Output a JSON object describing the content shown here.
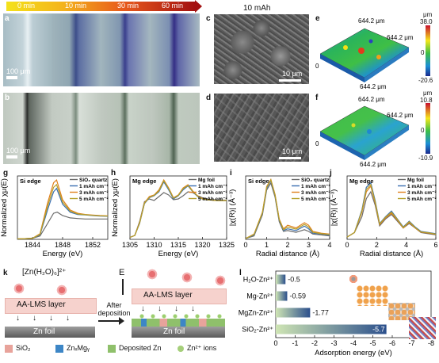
{
  "panels": {
    "a": "a",
    "b": "b",
    "c": "c",
    "d": "d",
    "e": "e",
    "f": "f",
    "g": "g",
    "h": "h",
    "i": "i",
    "j": "j",
    "k": "k",
    "l": "l"
  },
  "time_bar": {
    "labels": [
      "0 min",
      "10 min",
      "30 min",
      "60 min"
    ],
    "colors": [
      "#f6d800",
      "#f19a1b",
      "#e0401f",
      "#a91414"
    ]
  },
  "scale_labels": {
    "a": "100 μm",
    "b": "100 μm",
    "c": "10 μm",
    "d": "10 μm"
  },
  "sem_title": "10 mAh",
  "afm": {
    "e": {
      "top": "644.2 μm",
      "right": "644.2 μm",
      "bottom": "644.2 μm",
      "zero": "0",
      "unit": "μm",
      "max": "38.0",
      "mid": "0",
      "min": "-20.6"
    },
    "f": {
      "top": "644.2 μm",
      "right": "644.2 μm",
      "bottom": "644.2 μm",
      "zero": "0",
      "unit": "μm",
      "max": "10.8",
      "mid": "0",
      "min": "-10.9"
    }
  },
  "chart_data": [
    {
      "id": "g",
      "type": "line",
      "title": "Si edge",
      "xlabel": "Energy (eV)",
      "ylabel": "Normalized χμ(E)",
      "xlim": [
        1842,
        1854
      ],
      "xticks": [
        1844,
        1848,
        1852
      ],
      "series": [
        {
          "name": "SiO₂ quartz",
          "color": "#6b6b6b",
          "x": [
            1842,
            1843,
            1844,
            1845,
            1846,
            1846.8,
            1847.3,
            1848,
            1849,
            1850,
            1851,
            1852,
            1853,
            1854
          ],
          "y": [
            0.02,
            0.03,
            0.05,
            0.15,
            0.7,
            1.15,
            1.2,
            1.05,
            0.95,
            0.92,
            0.9,
            0.9,
            0.9,
            0.9
          ]
        },
        {
          "name": "1 mAh cm⁻²",
          "color": "#3a6fb0",
          "x": [
            1842,
            1843,
            1844,
            1845,
            1846,
            1846.8,
            1847.2,
            1848,
            1849,
            1850,
            1851,
            1852,
            1853,
            1854
          ],
          "y": [
            0.02,
            0.03,
            0.05,
            0.2,
            1.3,
            2.1,
            2.25,
            1.55,
            1.2,
            1.1,
            1.08,
            1.05,
            1.03,
            1.02
          ]
        },
        {
          "name": "3 mAh cm⁻²",
          "color": "#e0801c",
          "x": [
            1842,
            1843,
            1844,
            1845,
            1846,
            1846.8,
            1847.2,
            1848,
            1849,
            1850,
            1851,
            1852,
            1853,
            1854
          ],
          "y": [
            0.02,
            0.03,
            0.05,
            0.25,
            1.6,
            2.5,
            2.62,
            1.75,
            1.3,
            1.15,
            1.1,
            1.07,
            1.05,
            1.04
          ]
        },
        {
          "name": "5 mAh cm⁻²",
          "color": "#b5a02b",
          "x": [
            1842,
            1843,
            1844,
            1845,
            1846,
            1846.8,
            1847.2,
            1848,
            1849,
            1850,
            1851,
            1852,
            1853,
            1854
          ],
          "y": [
            0.02,
            0.03,
            0.05,
            0.22,
            1.45,
            2.3,
            2.42,
            1.65,
            1.25,
            1.12,
            1.09,
            1.06,
            1.04,
            1.03
          ]
        }
      ]
    },
    {
      "id": "h",
      "type": "line",
      "title": "Mg edge",
      "xlabel": "Energy (eV)",
      "ylabel": "Normalized χμ(E)",
      "xlim": [
        1305,
        1325
      ],
      "xticks": [
        1305,
        1310,
        1315,
        1320,
        1325
      ],
      "series": [
        {
          "name": "Mg foil",
          "color": "#6b6b6b",
          "x": [
            1305,
            1306,
            1307,
            1308,
            1309,
            1310,
            1311,
            1312,
            1313,
            1314,
            1315,
            1316,
            1317,
            1318,
            1319,
            1320,
            1321,
            1322,
            1323,
            1324,
            1325
          ],
          "y": [
            0.05,
            0.1,
            0.45,
            0.95,
            1.02,
            0.98,
            1.08,
            1.18,
            1.12,
            1.0,
            1.02,
            1.1,
            1.2,
            1.18,
            1.1,
            1.05,
            1.02,
            1.0,
            1.0,
            0.99,
            0.99
          ]
        },
        {
          "name": "1 mAh cm⁻²",
          "color": "#3a6fb0",
          "x": [
            1305,
            1306,
            1307,
            1308,
            1309,
            1310,
            1311,
            1312,
            1313,
            1314,
            1315,
            1316,
            1317,
            1318,
            1319,
            1320,
            1321,
            1322,
            1323,
            1324,
            1325
          ],
          "y": [
            0.05,
            0.1,
            0.4,
            0.9,
            1.05,
            1.1,
            1.2,
            1.45,
            1.25,
            1.02,
            1.1,
            1.25,
            1.35,
            1.2,
            1.08,
            1.02,
            1.0,
            0.99,
            0.98,
            0.98,
            0.98
          ]
        },
        {
          "name": "3 mAh cm⁻²",
          "color": "#e0801c",
          "x": [
            1305,
            1306,
            1307,
            1308,
            1309,
            1310,
            1311,
            1312,
            1313,
            1314,
            1315,
            1316,
            1317,
            1318,
            1319,
            1320,
            1321,
            1322,
            1323,
            1324,
            1325
          ],
          "y": [
            0.05,
            0.1,
            0.42,
            0.92,
            1.08,
            1.12,
            1.25,
            1.5,
            1.3,
            1.05,
            1.12,
            1.3,
            1.38,
            1.22,
            1.1,
            1.03,
            1.0,
            0.99,
            0.98,
            0.98,
            0.98
          ]
        },
        {
          "name": "5 mAh cm⁻²",
          "color": "#b5a02b",
          "x": [
            1305,
            1306,
            1307,
            1308,
            1309,
            1310,
            1311,
            1312,
            1313,
            1314,
            1315,
            1316,
            1317,
            1318,
            1319,
            1320,
            1321,
            1322,
            1323,
            1324,
            1325
          ],
          "y": [
            0.05,
            0.1,
            0.41,
            0.91,
            1.06,
            1.11,
            1.22,
            1.48,
            1.28,
            1.04,
            1.11,
            1.28,
            1.36,
            1.21,
            1.09,
            1.02,
            1.0,
            0.99,
            0.98,
            0.98,
            0.98
          ]
        }
      ]
    },
    {
      "id": "i",
      "type": "line",
      "title": "Si edge",
      "xlabel": "Radial distance (Å)",
      "ylabel": "|χ(R)| (Å⁻³)",
      "xlim": [
        0,
        4
      ],
      "xticks": [
        0,
        1,
        2,
        3,
        4
      ],
      "series": [
        {
          "name": "SiO₂ quartz",
          "color": "#6b6b6b",
          "x": [
            0,
            0.4,
            0.8,
            1.0,
            1.2,
            1.4,
            1.6,
            1.8,
            2.0,
            2.4,
            2.8,
            3.0,
            3.2,
            3.6,
            4.0
          ],
          "y": [
            0.05,
            0.2,
            1.4,
            2.8,
            3.2,
            2.4,
            1.0,
            0.45,
            0.5,
            0.4,
            0.55,
            0.45,
            0.3,
            0.25,
            0.2
          ]
        },
        {
          "name": "1 mAh cm⁻²",
          "color": "#3a6fb0",
          "x": [
            0,
            0.4,
            0.8,
            1.0,
            1.2,
            1.4,
            1.6,
            1.8,
            2.0,
            2.4,
            2.8,
            3.0,
            3.2,
            3.6,
            4.0
          ],
          "y": [
            0.05,
            0.25,
            1.5,
            2.9,
            3.35,
            2.5,
            1.1,
            0.5,
            0.6,
            0.5,
            0.75,
            0.6,
            0.35,
            0.3,
            0.25
          ]
        },
        {
          "name": "3 mAh cm⁻²",
          "color": "#e0801c",
          "x": [
            0,
            0.4,
            0.8,
            1.0,
            1.2,
            1.4,
            1.6,
            1.8,
            2.0,
            2.4,
            2.8,
            3.0,
            3.2,
            3.6,
            4.0
          ],
          "y": [
            0.05,
            0.3,
            1.55,
            3.0,
            3.4,
            2.55,
            1.15,
            0.6,
            0.8,
            0.65,
            0.95,
            0.8,
            0.45,
            0.35,
            0.3
          ]
        },
        {
          "name": "5 mAh cm⁻²",
          "color": "#b5a02b",
          "x": [
            0,
            0.4,
            0.8,
            1.0,
            1.2,
            1.4,
            1.6,
            1.8,
            2.0,
            2.4,
            2.8,
            3.0,
            3.2,
            3.6,
            4.0
          ],
          "y": [
            0.05,
            0.28,
            1.52,
            2.95,
            3.38,
            2.52,
            1.12,
            0.55,
            0.7,
            0.58,
            0.85,
            0.7,
            0.4,
            0.32,
            0.28
          ]
        }
      ]
    },
    {
      "id": "j",
      "type": "line",
      "title": "Mg edge",
      "xlabel": "Radial distance (Å)",
      "ylabel": "|χ(R)| (Å⁻³)",
      "xlim": [
        0,
        6
      ],
      "xticks": [
        0,
        2,
        4,
        6
      ],
      "series": [
        {
          "name": "Mg foil",
          "color": "#6b6b6b",
          "x": [
            0,
            0.5,
            1.0,
            1.3,
            1.6,
            1.9,
            2.2,
            2.6,
            3.0,
            3.4,
            3.8,
            4.2,
            4.6,
            5.0,
            5.5,
            6.0
          ],
          "y": [
            0.1,
            0.3,
            1.0,
            1.8,
            2.1,
            1.5,
            0.6,
            0.9,
            1.1,
            0.8,
            0.5,
            0.7,
            0.5,
            0.3,
            0.25,
            0.2
          ]
        },
        {
          "name": "1 mAh cm⁻²",
          "color": "#3a6fb0",
          "x": [
            0,
            0.5,
            1.0,
            1.3,
            1.6,
            1.9,
            2.2,
            2.6,
            3.0,
            3.4,
            3.8,
            4.2,
            4.6,
            5.0,
            5.5,
            6.0
          ],
          "y": [
            0.1,
            0.3,
            1.3,
            2.3,
            2.5,
            1.7,
            0.7,
            1.0,
            1.25,
            0.9,
            0.55,
            0.8,
            0.55,
            0.35,
            0.3,
            0.25
          ]
        },
        {
          "name": "3 mAh cm⁻²",
          "color": "#e0801c",
          "x": [
            0,
            0.5,
            1.0,
            1.3,
            1.6,
            1.9,
            2.2,
            2.6,
            3.0,
            3.4,
            3.8,
            4.2,
            4.6,
            5.0,
            5.5,
            6.0
          ],
          "y": [
            0.1,
            0.3,
            1.2,
            2.1,
            2.35,
            1.6,
            0.65,
            0.95,
            1.15,
            0.85,
            0.5,
            0.75,
            0.5,
            0.32,
            0.28,
            0.22
          ]
        },
        {
          "name": "5 mAh cm⁻²",
          "color": "#b5a02b",
          "x": [
            0,
            0.5,
            1.0,
            1.3,
            1.6,
            1.9,
            2.2,
            2.6,
            3.0,
            3.4,
            3.8,
            4.2,
            4.6,
            5.0,
            5.5,
            6.0
          ],
          "y": [
            0.1,
            0.3,
            1.25,
            2.2,
            2.42,
            1.65,
            0.68,
            0.98,
            1.2,
            0.88,
            0.52,
            0.78,
            0.52,
            0.33,
            0.29,
            0.23
          ]
        }
      ]
    },
    {
      "id": "l",
      "type": "bar",
      "orientation": "horizontal",
      "xlabel": "Adsorption energy (eV)",
      "xlim": [
        0,
        -8
      ],
      "xticks": [
        0,
        -1,
        -2,
        -3,
        -4,
        -5,
        -6,
        -7,
        -8
      ],
      "categories": [
        "H₂O-Zn²⁺",
        "Mg-Zn²⁺",
        "MgZn-Zn²⁺",
        "SiO₂-Zn²⁺"
      ],
      "values": [
        -0.5,
        -0.59,
        -1.77,
        -5.7
      ],
      "value_labels": [
        "-0.5",
        "-0.59",
        "-1.77",
        "-5.7"
      ]
    }
  ],
  "schematic": {
    "left_formula": "[Zn(H₂O)₆]²⁺",
    "layer": "AA-LMS layer",
    "foil": "Zn foil",
    "arrow_label": "After deposition",
    "E": "E"
  },
  "legend_k": [
    {
      "label": "SiO₂",
      "color": "#e8a39b"
    },
    {
      "label": "ZnₓMgᵧ",
      "color": "#3d86c6"
    },
    {
      "label": "Deposited Zn",
      "color": "#8fc06b"
    },
    {
      "label": "Zn²⁺ ions",
      "color": "#a5cf7a"
    }
  ],
  "colors": {
    "line_gray": "#6b6b6b",
    "line_blue": "#3a6fb0",
    "line_orange": "#e0801c",
    "line_olive": "#b5a02b"
  }
}
